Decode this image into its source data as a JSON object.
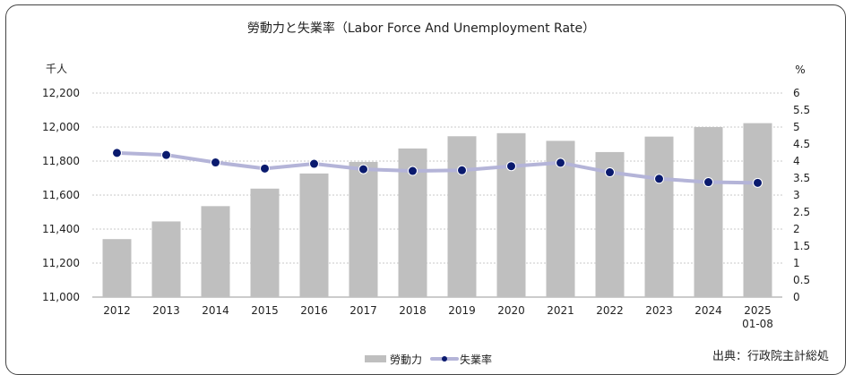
{
  "chart_data": {
    "type": "bar+line",
    "title": "勞動力と失業率（Labor Force And Unemployment Rate）",
    "left_axis_unit": "千人",
    "right_axis_unit": "%",
    "categories": [
      "2012",
      "2013",
      "2014",
      "2015",
      "2016",
      "2017",
      "2018",
      "2019",
      "2020",
      "2021",
      "2022",
      "2023",
      "2024",
      "2025\n01-08"
    ],
    "left_ylim": [
      11000,
      12200
    ],
    "left_ticks": [
      "11,000",
      "11,200",
      "11,400",
      "11,600",
      "11,800",
      "12,000",
      "12,200"
    ],
    "right_ylim": [
      0,
      6
    ],
    "right_ticks": [
      "0",
      "0.5",
      "1",
      "1.5",
      "2",
      "2.5",
      "3",
      "3.5",
      "4",
      "4.5",
      "5",
      "5.5",
      "6"
    ],
    "series": [
      {
        "name": "勞動力",
        "type": "bar",
        "axis": "left",
        "values": [
          11341,
          11445,
          11535,
          11638,
          11727,
          11795,
          11874,
          11946,
          11964,
          11919,
          11853,
          11944,
          12000,
          12023
        ]
      },
      {
        "name": "失業率",
        "type": "line",
        "axis": "right",
        "values": [
          4.24,
          4.18,
          3.96,
          3.78,
          3.92,
          3.76,
          3.71,
          3.73,
          3.85,
          3.95,
          3.67,
          3.48,
          3.38,
          3.36
        ]
      }
    ],
    "grid": true,
    "legend": "bottom-center",
    "colors": {
      "bar": "#bfbfbf",
      "line": "#b4b4d8",
      "marker": "#0a1a6e",
      "grid": "#c8c8c8"
    }
  },
  "source_note": "出典：行政院主計総処"
}
